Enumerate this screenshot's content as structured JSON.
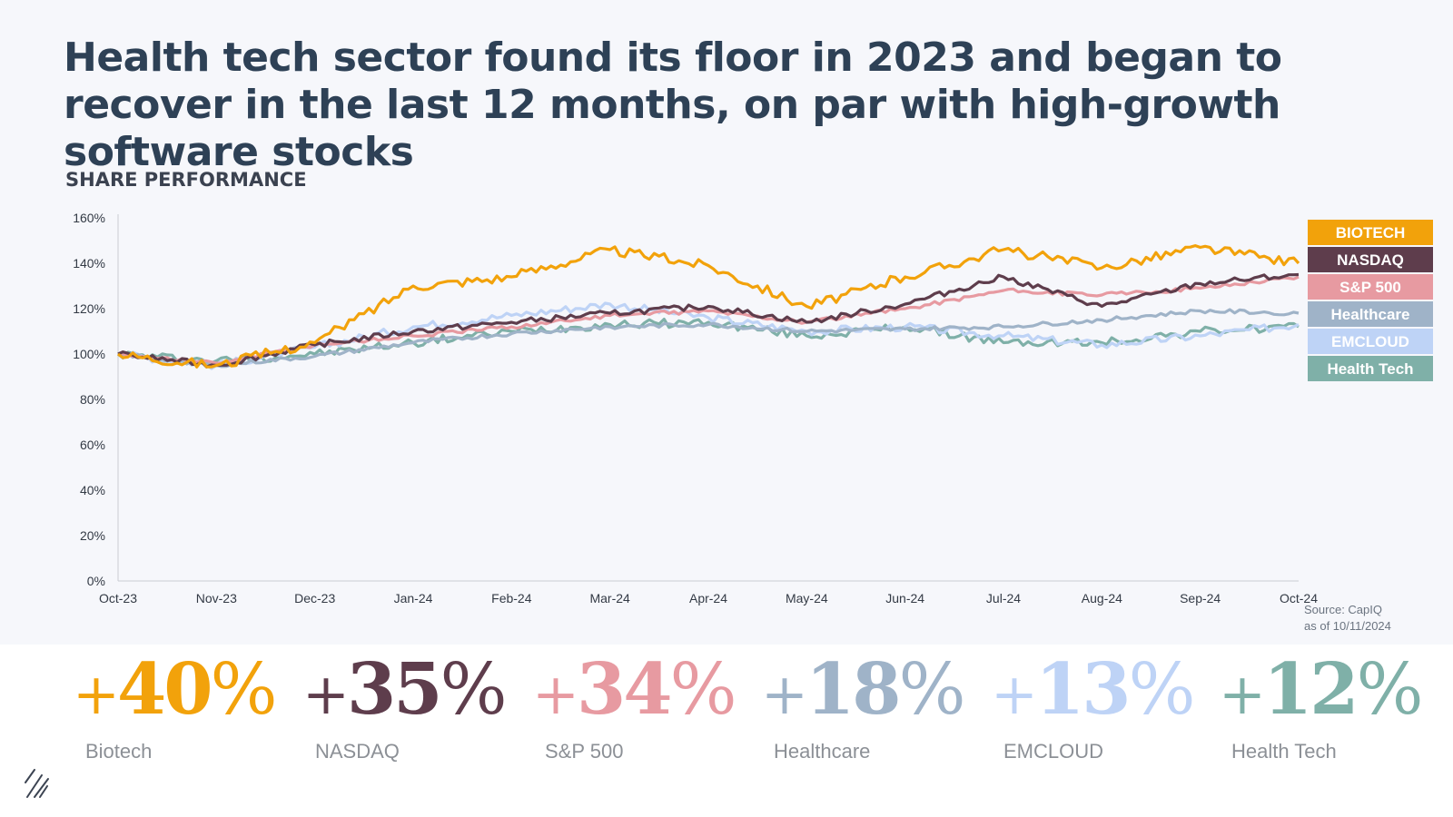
{
  "title": "Health tech sector found its floor in 2023 and began to recover in the last 12 months, on par with high-growth software stocks",
  "subtitle": "SHARE PERFORMANCE",
  "source_line1": "Source: CapIQ",
  "source_line2": "as of 10/11/2024",
  "stats": [
    {
      "sign": "+",
      "value": "40",
      "unit": "%",
      "label": "Biotech",
      "color": "#f2a20b"
    },
    {
      "sign": "+",
      "value": "35",
      "unit": "%",
      "label": "NASDAQ",
      "color": "#5e3d4c"
    },
    {
      "sign": "+",
      "value": "34",
      "unit": "%",
      "label": "S&P 500",
      "color": "#e79aa1"
    },
    {
      "sign": "+",
      "value": "18",
      "unit": "%",
      "label": "Healthcare",
      "color": "#9fb3c8"
    },
    {
      "sign": "+",
      "value": "13",
      "unit": "%",
      "label": "EMCLOUD",
      "color": "#bed3f6"
    },
    {
      "sign": "+",
      "value": "12",
      "unit": "%",
      "label": "Health Tech",
      "color": "#7fb0a8"
    }
  ],
  "chart_data": {
    "type": "line",
    "title": "SHARE PERFORMANCE",
    "ylim": [
      0,
      160
    ],
    "y_ticks": [
      "0%",
      "20%",
      "40%",
      "60%",
      "80%",
      "100%",
      "120%",
      "140%",
      "160%"
    ],
    "y_tick_values": [
      0,
      20,
      40,
      60,
      80,
      100,
      120,
      140,
      160
    ],
    "categories": [
      "Oct-23",
      "Nov-23",
      "Dec-23",
      "Jan-24",
      "Feb-24",
      "Mar-24",
      "Apr-24",
      "May-24",
      "Jun-24",
      "Jul-24",
      "Aug-24",
      "Sep-24",
      "Oct-24"
    ],
    "legend_position": "right",
    "series": [
      {
        "name": "Health Tech",
        "legend": "Health Tech",
        "color": "#7fb0a8",
        "values": [
          100,
          97,
          100,
          105,
          110,
          113,
          114,
          108,
          112,
          105,
          105,
          110,
          112
        ]
      },
      {
        "name": "EMCLOUD",
        "legend": "EMCLOUD",
        "color": "#bed3f6",
        "values": [
          100,
          95,
          103,
          112,
          117,
          122,
          116,
          110,
          112,
          108,
          104,
          108,
          113
        ]
      },
      {
        "name": "Healthcare",
        "legend": "Healthcare",
        "color": "#9fb3c8",
        "values": [
          100,
          95,
          99,
          105,
          109,
          112,
          113,
          110,
          111,
          112,
          115,
          119,
          118
        ]
      },
      {
        "name": "S&P 500",
        "legend": "S&P 500",
        "color": "#e79aa1",
        "values": [
          100,
          96,
          104,
          108,
          112,
          117,
          119,
          114,
          120,
          128,
          126,
          129,
          134
        ]
      },
      {
        "name": "NASDAQ",
        "legend": "NASDAQ",
        "color": "#5e3d4c",
        "values": [
          100,
          95,
          104,
          110,
          114,
          118,
          121,
          114,
          122,
          134,
          121,
          131,
          135
        ]
      },
      {
        "name": "Biotech",
        "legend": "BIOTECH",
        "color": "#f2a20b",
        "values": [
          100,
          95,
          105,
          130,
          134,
          146,
          139,
          121,
          134,
          146,
          138,
          147,
          140
        ]
      }
    ]
  }
}
